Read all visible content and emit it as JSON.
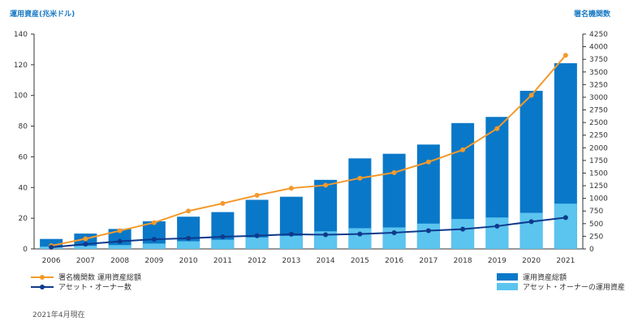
{
  "chart_data": {
    "type": "bar",
    "categories": [
      "2006",
      "2007",
      "2008",
      "2009",
      "2010",
      "2011",
      "2012",
      "2013",
      "2014",
      "2015",
      "2016",
      "2017",
      "2018",
      "2019",
      "2020",
      "2021"
    ],
    "left_axis_title": "運用資産(兆米ドル)",
    "right_axis_title": "署名機関数",
    "left_ylim": [
      0,
      140
    ],
    "left_ticks": [
      0,
      20,
      40,
      60,
      80,
      100,
      120,
      140
    ],
    "right_ylim": [
      0,
      4250
    ],
    "right_ticks": [
      0,
      250,
      500,
      750,
      1000,
      1250,
      1500,
      1750,
      2000,
      2250,
      2500,
      2750,
      3000,
      3250,
      3500,
      3750,
      4000,
      4250
    ],
    "series": [
      {
        "name": "運用資産総額",
        "kind": "bar",
        "axis": "left",
        "color": "#0a78c8",
        "values": [
          6.5,
          10,
          13,
          18,
          21,
          24,
          32,
          34,
          45,
          59,
          62,
          68,
          82,
          86,
          103,
          121
        ]
      },
      {
        "name": "アセット・オーナーの運用資産",
        "kind": "bar",
        "axis": "left",
        "color": "#5bc4ef",
        "values": [
          1.5,
          2,
          2.5,
          3.5,
          5,
          6,
          7.5,
          8.5,
          11.5,
          13.5,
          14,
          16.5,
          19.5,
          20.5,
          23.5,
          29.5
        ]
      },
      {
        "name": "署名機関数 運用資産総額",
        "kind": "line",
        "axis": "right",
        "color": "#f39a2c",
        "values": [
          63,
          200,
          360,
          520,
          750,
          900,
          1060,
          1200,
          1260,
          1400,
          1510,
          1720,
          1960,
          2380,
          3040,
          3830
        ]
      },
      {
        "name": "アセット・オーナー数",
        "kind": "line",
        "axis": "right",
        "color": "#0f3a8c",
        "values": [
          32,
          95,
          150,
          190,
          210,
          240,
          260,
          290,
          280,
          295,
          320,
          360,
          390,
          450,
          540,
          620
        ]
      }
    ],
    "note": "2021年4月現在",
    "grid": false
  }
}
